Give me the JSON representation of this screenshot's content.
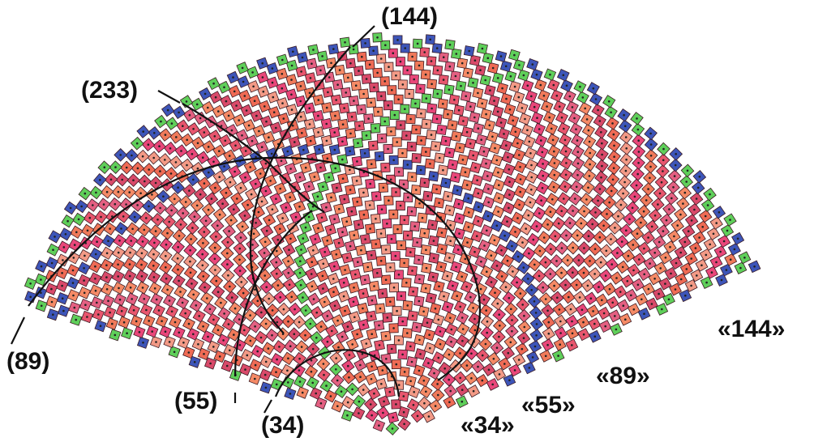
{
  "labels": {
    "top": "(144)",
    "upper_left": "(233)",
    "left": "(89)",
    "bottom_left": "(55)",
    "bottom": "(34)",
    "right_1": "«144»",
    "right_2": "«89»",
    "right_3": "«55»",
    "right_4": "«34»"
  }
}
